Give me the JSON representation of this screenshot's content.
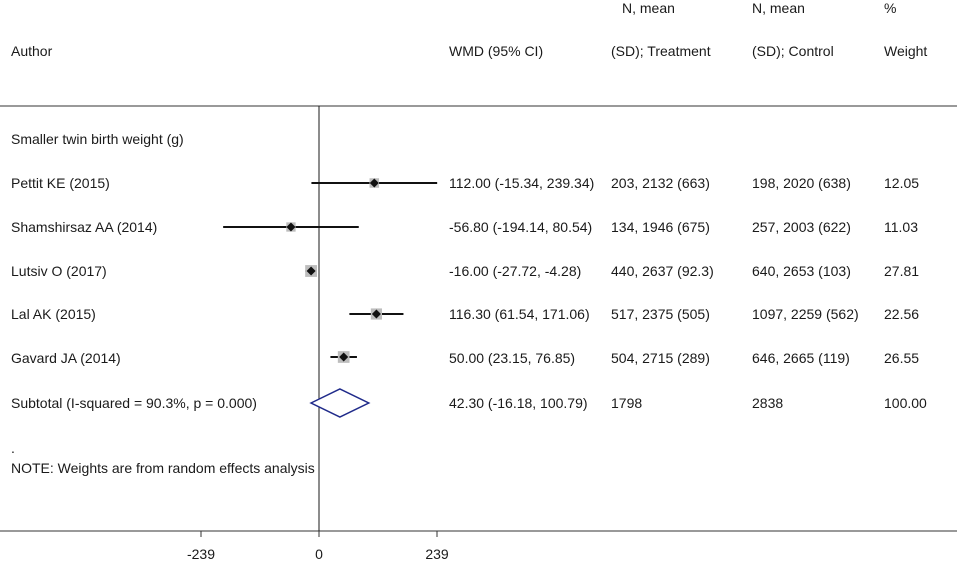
{
  "header": {
    "author": "Author",
    "wmd": "WMD (95% CI)",
    "treatment_line1": "N, mean",
    "treatment_line2": "(SD); Treatment",
    "control_line1": "N, mean",
    "control_line2": "(SD); Control",
    "weight_line1": "%",
    "weight_line2": "Weight"
  },
  "group_label": "Smaller twin birth weight (g)",
  "note_dot": ".",
  "note": "NOTE: Weights are from random effects analysis",
  "chart_data": {
    "type": "forest",
    "measure": "WMD (95% CI)",
    "xlim": [
      -239,
      239
    ],
    "xticks": [
      -239,
      0,
      239
    ],
    "xtick_labels": [
      "-239",
      "0",
      "239"
    ],
    "null_line": 0,
    "studies": [
      {
        "author": "Pettit KE (2015)",
        "est": 112.0,
        "lo": -15.34,
        "hi": 239.34,
        "ci_text": "112.00 (-15.34, 239.34)",
        "treatment": "203, 2132 (663)",
        "control": "198, 2020 (638)",
        "weight": 12.05,
        "weight_text": "12.05"
      },
      {
        "author": "Shamshirsaz AA (2014)",
        "est": -56.8,
        "lo": -194.14,
        "hi": 80.54,
        "ci_text": "-56.80 (-194.14, 80.54)",
        "treatment": "134, 1946 (675)",
        "control": "257, 2003 (622)",
        "weight": 11.03,
        "weight_text": "11.03"
      },
      {
        "author": "Lutsiv O (2017)",
        "est": -16.0,
        "lo": -27.72,
        "hi": -4.28,
        "ci_text": "-16.00 (-27.72, -4.28)",
        "treatment": "440, 2637 (92.3)",
        "control": "640, 2653 (103)",
        "weight": 27.81,
        "weight_text": "27.81"
      },
      {
        "author": "Lal AK (2015)",
        "est": 116.3,
        "lo": 61.54,
        "hi": 171.06,
        "ci_text": "116.30 (61.54, 171.06)",
        "treatment": "517, 2375 (505)",
        "control": "1097, 2259 (562)",
        "weight": 22.56,
        "weight_text": "22.56"
      },
      {
        "author": "Gavard JA (2014)",
        "est": 50.0,
        "lo": 23.15,
        "hi": 76.85,
        "ci_text": "50.00 (23.15, 76.85)",
        "treatment": "504, 2715 (289)",
        "control": "646, 2665 (119)",
        "weight": 26.55,
        "weight_text": "26.55"
      }
    ],
    "subtotal": {
      "label": "Subtotal  (I-squared = 90.3%, p = 0.000)",
      "est": 42.3,
      "lo": -16.18,
      "hi": 100.79,
      "ci_text": "42.30 (-16.18, 100.79)",
      "treatment": "1798",
      "control": "2838",
      "weight_text": "100.00"
    }
  }
}
